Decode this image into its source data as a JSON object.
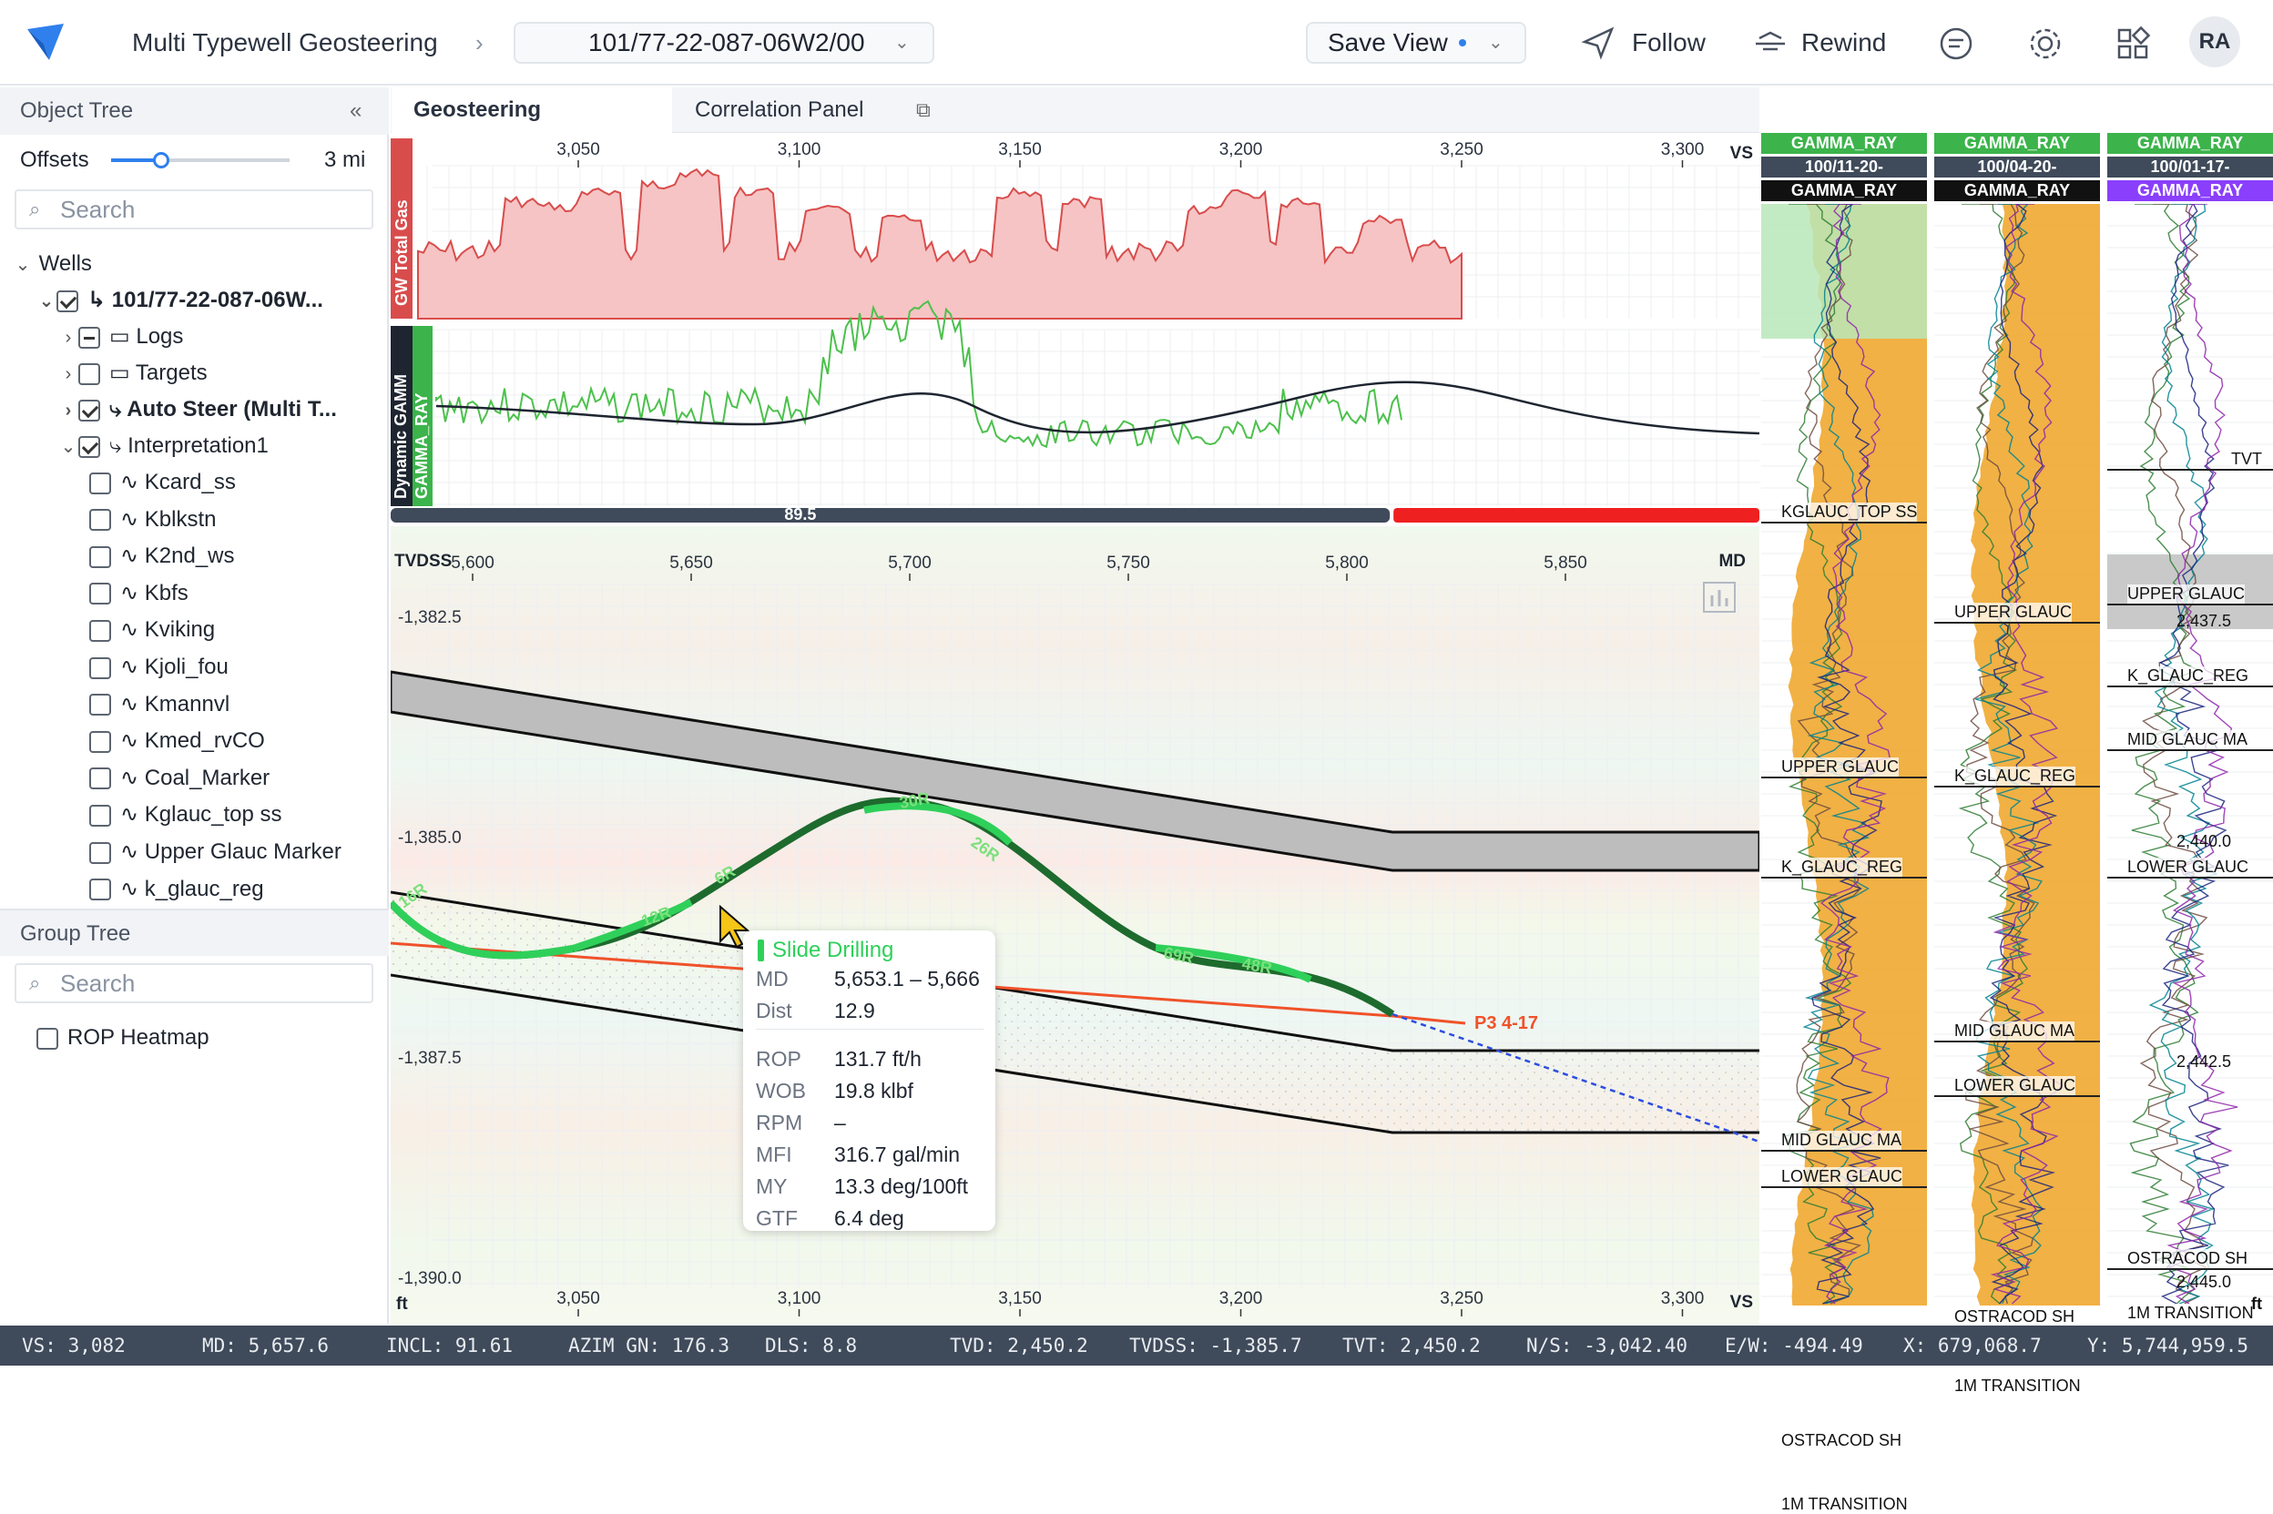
{
  "app": {
    "title": "Multi Typewell Geosteering",
    "well_selector": "101/77-22-087-06W2/00",
    "save_view": "Save View",
    "follow": "Follow",
    "rewind": "Rewind",
    "avatar": "RA"
  },
  "object_tree": {
    "title": "Object Tree",
    "offsets_label": "Offsets",
    "offsets_value": "3 mi",
    "offsets_level": 0.28,
    "search_placeholder": "Search",
    "wells_label": "Wells",
    "well_name": "101/77-22-087-06W...",
    "children": [
      "Logs",
      "Targets",
      "Auto Steer (Multi T...",
      "Interpretation1"
    ],
    "horizons": [
      "Kcard_ss",
      "Kblkstn",
      "K2nd_ws",
      "Kbfs",
      "Kviking",
      "Kjoli_fou",
      "Kmannvl",
      "Kmed_rvCO",
      "Coal_Marker",
      "Kglauc_top ss",
      "Upper Glauc Marker",
      "k_glauc_reg"
    ]
  },
  "group_tree": {
    "title": "Group Tree",
    "search_placeholder": "Search",
    "items": [
      "ROP Heatmap"
    ]
  },
  "tabs": [
    "Geosteering",
    "Correlation Panel"
  ],
  "top_axis": {
    "ticks": [
      "3,050",
      "3,100",
      "3,150",
      "3,200",
      "3,250",
      "3,300"
    ],
    "unit": "VS"
  },
  "gas_track": {
    "label": "GW Total Gas",
    "color": "#d94c4c"
  },
  "gamma_track": {
    "label1": "Dynamic GAMM",
    "label2": "GAMMA_RAY"
  },
  "progress": {
    "value": "89.5",
    "fraction": 0.73
  },
  "md_axis": {
    "label_left": "TVDSS",
    "ticks": [
      "5,600",
      "5,650",
      "5,700",
      "5,750",
      "5,800",
      "5,850"
    ],
    "unit": "MD"
  },
  "depth_axis": {
    "ticks": [
      "-1,382.5",
      "-1,385.0",
      "-1,387.5",
      "-1,390.0"
    ],
    "unit": "ft"
  },
  "bottom_axis": {
    "ticks": [
      "3,050",
      "3,100",
      "3,150",
      "3,200",
      "3,250",
      "3,300"
    ],
    "unit": "VS"
  },
  "trajectory_labels": [
    "16R",
    "12R",
    "6R",
    "30R",
    "26R",
    "69R",
    "48R"
  ],
  "target_label": "P3 4-17",
  "tooltip": {
    "title": "Slide Drilling",
    "rows1": [
      {
        "k": "MD",
        "v": "5,653.1 – 5,666"
      },
      {
        "k": "Dist",
        "v": "12.9"
      }
    ],
    "rows2": [
      {
        "k": "ROP",
        "v": "131.7 ft/h"
      },
      {
        "k": "WOB",
        "v": "19.8 klbf"
      },
      {
        "k": "RPM",
        "v": "–"
      },
      {
        "k": "MFI",
        "v": "316.7 gal/min"
      },
      {
        "k": "MY",
        "v": "13.3 deg/100ft"
      },
      {
        "k": "GTF",
        "v": "6.4 deg"
      }
    ]
  },
  "typewells": [
    {
      "head": [
        "GAMMA_RAY",
        "100/11-20-",
        "GAMMA_RAY"
      ],
      "head_colors": [
        "#3cb44b",
        "#3f4a5a",
        "#111111"
      ],
      "tops": [
        "KGLAUC_TOP SS",
        "UPPER GLAUC",
        "K_GLAUC_REG",
        "MID GLAUC MA",
        "LOWER GLAUC",
        "OSTRACOD SH",
        "1M TRANSITION"
      ]
    },
    {
      "head": [
        "GAMMA_RAY",
        "100/04-20-",
        "GAMMA_RAY"
      ],
      "head_colors": [
        "#3cb44b",
        "#3f4a5a",
        "#111111"
      ],
      "tops": [
        "UPPER GLAUC",
        "K_GLAUC_REG",
        "MID GLAUC MA",
        "LOWER GLAUC",
        "OSTRACOD SH",
        "1M TRANSITION"
      ]
    },
    {
      "head": [
        "GAMMA_RAY",
        "100/01-17-",
        "GAMMA_RAY"
      ],
      "head_colors": [
        "#3cb44b",
        "#3f4a5a",
        "#8a3ffc"
      ],
      "tops": [
        "TVT",
        "UPPER GLAUC",
        "K_GLAUC_REG",
        "MID GLAUC MA",
        "LOWER GLAUC",
        "OSTRACOD SH",
        "1M TRANSITION"
      ],
      "depths": [
        "2,437.5",
        "2,440.0",
        "2,442.5",
        "2,445.0"
      ],
      "unit": "ft"
    }
  ],
  "status": {
    "vs": "VS: 3,082",
    "md": "MD: 5,657.6",
    "incl": "INCL: 91.61",
    "azim": "AZIM GN: 176.3",
    "dls": "DLS: 8.8",
    "tvd": "TVD: 2,450.2",
    "tvdss": "TVDSS: -1,385.7",
    "tvt": "TVT: 2,450.2",
    "ns": "N/S: -3,042.40",
    "ew": "E/W: -494.49",
    "x": "X: 679,068.7",
    "y": "Y: 5,744,959.5"
  }
}
